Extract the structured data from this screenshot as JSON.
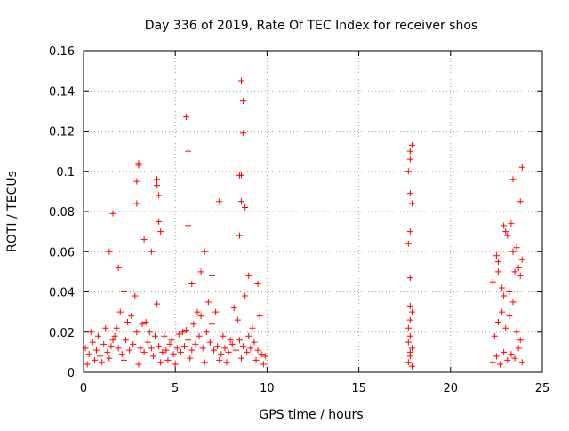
{
  "chart_data": {
    "type": "scatter",
    "title": "Day 336 of 2019, Rate Of TEC Index for receiver shos",
    "xlabel": "GPS time / hours",
    "ylabel": "ROTI / TECUs",
    "xlim": [
      0,
      25
    ],
    "ylim": [
      0,
      0.16
    ],
    "x_ticks": [
      0,
      5,
      10,
      15,
      20,
      25
    ],
    "y_ticks": [
      0,
      0.02,
      0.04,
      0.06,
      0.08,
      0.1,
      0.12,
      0.14,
      0.16
    ],
    "x_tick_labels": [
      "0",
      "5",
      "10",
      "15",
      "20",
      "25"
    ],
    "y_tick_labels": [
      "0",
      "0.02",
      "0.04",
      "0.06",
      "0.08",
      "0.1",
      "0.12",
      "0.14",
      "0.16"
    ],
    "grid": true,
    "legend": "none",
    "marker": "plus",
    "color": "#ff0000",
    "series": [
      {
        "x": [
          0.1,
          0.3,
          0.5,
          0.7,
          0.9,
          1.1,
          1.3,
          1.5,
          1.7,
          1.9,
          2.1,
          2.3,
          2.5,
          2.7,
          2.9,
          3.1,
          3.3,
          3.5,
          3.7,
          3.9,
          4.1,
          4.3,
          4.5,
          4.7,
          4.9,
          5.1,
          5.3,
          5.5,
          5.7,
          5.9,
          6.1,
          6.3,
          6.5,
          6.7,
          6.9,
          7.1,
          7.3,
          7.5,
          7.7,
          7.9,
          8.1,
          8.3,
          8.5,
          8.7,
          8.9,
          9.1,
          9.3,
          9.5,
          9.7,
          9.9,
          0.2,
          0.6,
          1.0,
          1.4,
          1.8,
          2.2,
          2.6,
          3.0,
          3.4,
          3.8,
          4.2,
          4.6,
          5.0,
          5.4,
          5.8,
          6.2,
          6.6,
          7.0,
          7.4,
          7.8,
          8.2,
          8.6,
          9.0,
          9.4,
          9.8,
          0.4,
          0.8,
          1.2,
          1.6,
          2.0,
          2.4,
          2.8,
          3.2,
          3.6,
          4.0,
          4.4,
          4.8,
          5.2,
          5.6,
          6.0,
          6.4,
          6.8,
          7.2,
          7.6,
          8.0,
          8.4,
          8.8,
          9.2,
          9.6,
          1.4,
          1.6,
          1.9,
          2.2,
          2.9,
          3.0,
          3.3,
          3.7,
          4.0,
          4.1,
          4.2,
          5.7,
          5.9,
          6.4,
          6.6,
          7.0,
          7.4,
          8.5,
          8.6,
          8.7,
          8.8,
          9.0,
          9.5,
          2.9,
          3.0,
          4.0,
          4.1,
          5.6,
          5.7,
          8.5,
          8.6,
          8.7,
          8.6,
          17.7,
          17.8,
          17.9,
          17.8,
          17.7,
          17.8,
          17.9,
          17.8,
          17.7,
          17.8,
          17.9,
          17.8,
          17.7,
          17.8,
          17.9,
          17.8,
          17.7,
          17.8,
          17.8,
          17.9,
          22.3,
          22.5,
          22.7,
          22.9,
          23.1,
          23.3,
          23.5,
          23.7,
          23.9,
          22.4,
          22.6,
          22.8,
          23.0,
          23.2,
          23.4,
          23.6,
          23.8,
          22.3,
          22.6,
          22.9,
          23.2,
          23.5,
          23.8,
          22.5,
          22.8,
          23.1,
          23.4,
          23.7,
          23.0,
          23.3,
          23.6,
          23.9,
          23.8,
          23.4,
          22.9,
          22.6
        ],
        "y": [
          0.012,
          0.009,
          0.015,
          0.011,
          0.008,
          0.014,
          0.01,
          0.013,
          0.018,
          0.012,
          0.009,
          0.016,
          0.011,
          0.014,
          0.02,
          0.012,
          0.01,
          0.015,
          0.012,
          0.018,
          0.013,
          0.01,
          0.011,
          0.014,
          0.009,
          0.012,
          0.01,
          0.013,
          0.016,
          0.011,
          0.014,
          0.018,
          0.012,
          0.02,
          0.015,
          0.011,
          0.013,
          0.009,
          0.012,
          0.01,
          0.014,
          0.011,
          0.016,
          0.013,
          0.01,
          0.012,
          0.015,
          0.011,
          0.009,
          0.008,
          0.004,
          0.006,
          0.005,
          0.007,
          0.022,
          0.006,
          0.028,
          0.004,
          0.025,
          0.008,
          0.005,
          0.006,
          0.004,
          0.02,
          0.007,
          0.03,
          0.005,
          0.024,
          0.006,
          0.005,
          0.032,
          0.007,
          0.018,
          0.006,
          0.004,
          0.02,
          0.018,
          0.022,
          0.016,
          0.03,
          0.025,
          0.038,
          0.024,
          0.02,
          0.034,
          0.018,
          0.016,
          0.019,
          0.021,
          0.024,
          0.028,
          0.035,
          0.03,
          0.018,
          0.016,
          0.026,
          0.038,
          0.022,
          0.028,
          0.06,
          0.079,
          0.052,
          0.04,
          0.084,
          0.103,
          0.066,
          0.06,
          0.093,
          0.075,
          0.07,
          0.073,
          0.044,
          0.05,
          0.06,
          0.048,
          0.085,
          0.068,
          0.098,
          0.135,
          0.082,
          0.048,
          0.044,
          0.095,
          0.104,
          0.096,
          0.088,
          0.127,
          0.11,
          0.098,
          0.145,
          0.119,
          0.085,
          0.005,
          0.008,
          0.012,
          0.018,
          0.022,
          0.026,
          0.03,
          0.033,
          0.015,
          0.01,
          0.003,
          0.047,
          0.064,
          0.07,
          0.084,
          0.089,
          0.1,
          0.106,
          0.11,
          0.113,
          0.005,
          0.008,
          0.004,
          0.01,
          0.006,
          0.009,
          0.007,
          0.012,
          0.005,
          0.018,
          0.025,
          0.03,
          0.022,
          0.028,
          0.035,
          0.02,
          0.016,
          0.045,
          0.055,
          0.038,
          0.04,
          0.05,
          0.048,
          0.058,
          0.042,
          0.068,
          0.06,
          0.052,
          0.07,
          0.074,
          0.062,
          0.056,
          0.085,
          0.096,
          0.073,
          0.05
        ],
        "extra_point": {
          "x": 23.9,
          "y": 0.102
        }
      }
    ]
  }
}
